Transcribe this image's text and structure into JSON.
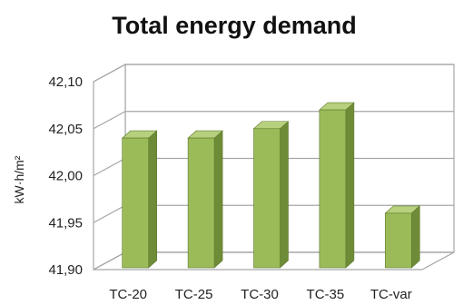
{
  "chart_data": {
    "type": "bar",
    "title": "Total energy demand",
    "ylabel": "kW·h/m²",
    "xlabel": "",
    "categories": [
      "TC-20",
      "TC-25",
      "TC-30",
      "TC-35",
      "TC-var"
    ],
    "values": [
      42.04,
      42.04,
      42.05,
      42.07,
      41.96
    ],
    "ylim": [
      41.9,
      42.1
    ],
    "yticks": [
      {
        "value": 42.1,
        "label": "42,10"
      },
      {
        "value": 42.05,
        "label": "42,05"
      },
      {
        "value": 42.0,
        "label": "42,00"
      },
      {
        "value": 41.95,
        "label": "41,95"
      },
      {
        "value": 41.9,
        "label": "41,90"
      }
    ],
    "grid": true,
    "legend": "none",
    "colors": {
      "bar_front": "#9BBB59",
      "bar_side": "#6E8C37",
      "bar_top": "#B7D07D",
      "bar_edge": "#5F7A2E",
      "grid": "#A6A6A6",
      "wall_fill": "#FFFFFF"
    }
  }
}
